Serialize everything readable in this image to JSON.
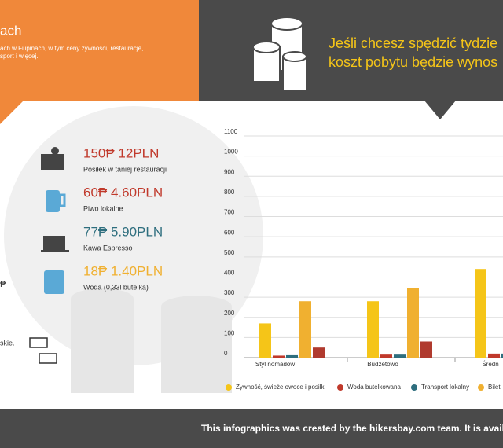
{
  "header": {
    "left_title": "ach",
    "left_text": [
      "ach w Filipinach, w tym ceny żywności, restauracje,",
      "sport i więcej."
    ],
    "right_text": [
      "Jeśli chcesz spędzić tydzie",
      "koszt pobytu będzie wynos"
    ]
  },
  "prices": [
    {
      "price": "150₱ 12PLN",
      "label": "Posiłek w taniej restauracji",
      "color": "#c0392b"
    },
    {
      "price": "60₱ 4.60PLN",
      "label": "Piwo lokalne",
      "color": "#c0392b"
    },
    {
      "price": "77₱ 5.90PLN",
      "label": "Kawa Espresso",
      "color": "#2e6e7e"
    },
    {
      "price": "18₱ 1.40PLN",
      "label": "Woda (0,33l butelka)",
      "color": "#f0b030"
    }
  ],
  "side": {
    "symbol": "₱",
    "text": "skie."
  },
  "chart_data": {
    "type": "bar",
    "categories": [
      "Styl nomadów",
      "Budżetowo",
      "Średn"
    ],
    "series": [
      {
        "name": "Żywność, świeże owoce i posiłki",
        "color": "#f5c518",
        "values": [
          170,
          280,
          440
        ]
      },
      {
        "name": "Woda butelkowana",
        "color": "#c0392b",
        "values": [
          10,
          15,
          20
        ]
      },
      {
        "name": "Transport lokalny",
        "color": "#2e6e7e",
        "values": [
          12,
          15,
          20
        ]
      },
      {
        "name": "Bilet",
        "color": "#f0b030",
        "values": [
          280,
          345,
          null
        ]
      },
      {
        "color": "#b03a2e",
        "values": [
          50,
          80,
          null
        ]
      }
    ],
    "ylim": [
      0,
      1100
    ],
    "yticks": [
      0,
      100,
      200,
      300,
      400,
      500,
      600,
      700,
      800,
      900,
      1000,
      1100
    ],
    "grid": true
  },
  "footer": "This infographics was created by the hikersbay.com team. It is avail"
}
